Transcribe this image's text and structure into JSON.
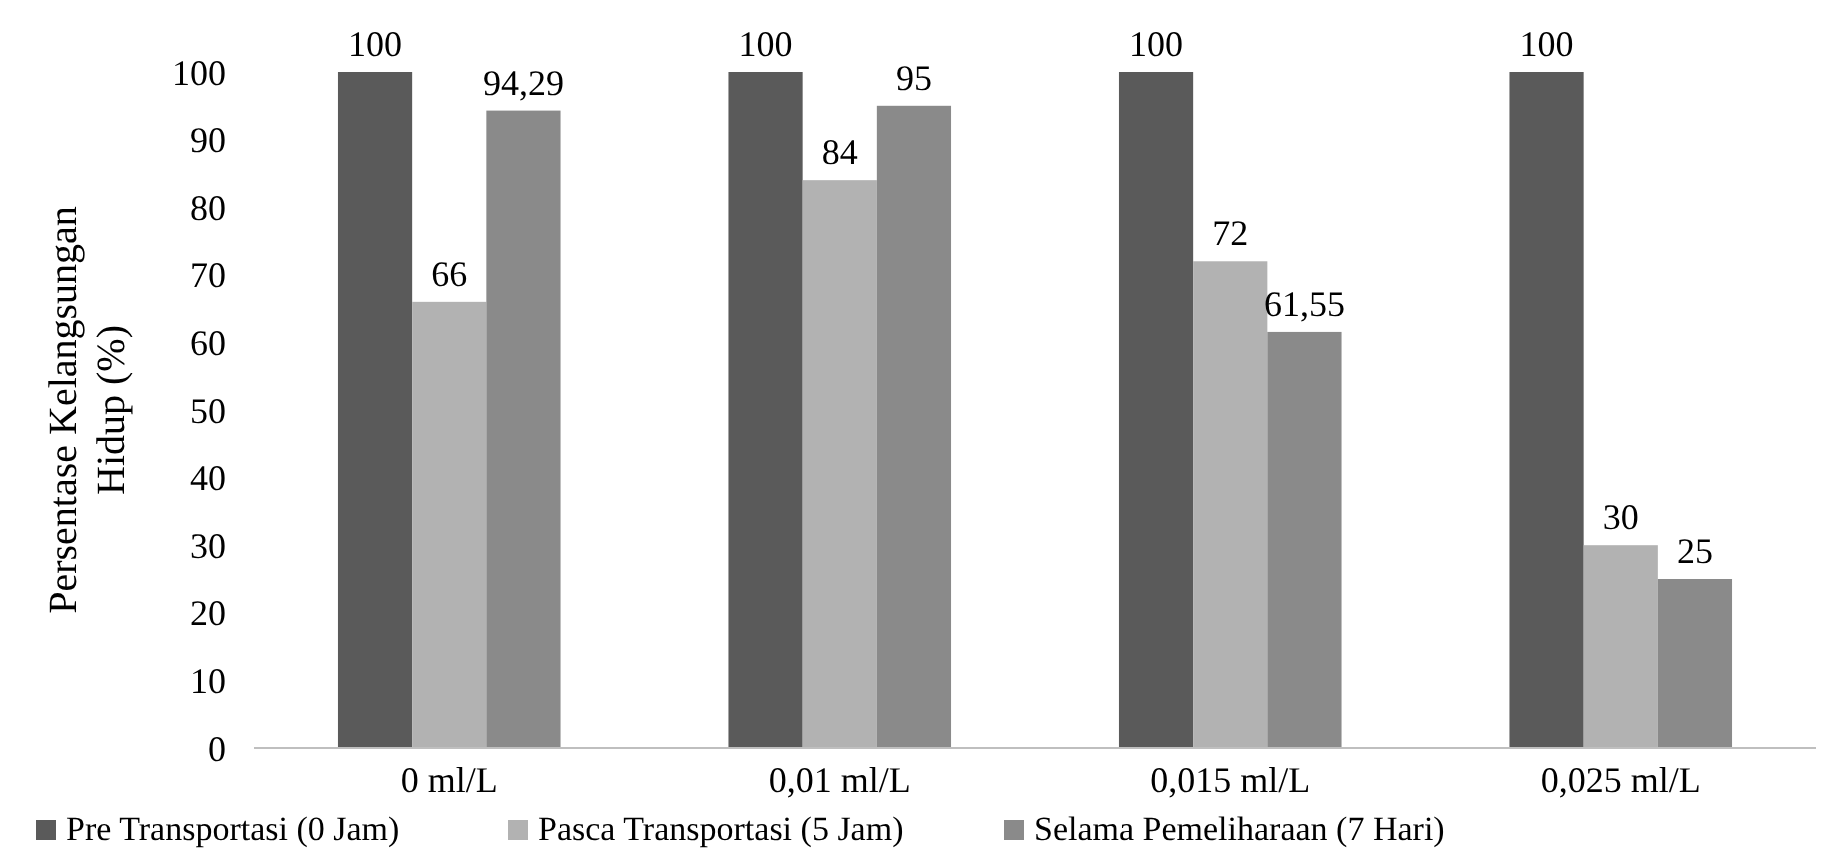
{
  "chart_data": {
    "type": "bar",
    "ylabel": "Persentase Kelangsungan Hidup (%)",
    "categories": [
      "0 ml/L",
      "0,01 ml/L",
      "0,015 ml/L",
      "0,025 ml/L"
    ],
    "series": [
      {
        "name": "Pre Transportasi (0 Jam)",
        "color": "#5a5a5a",
        "values": [
          100,
          100,
          100,
          100
        ],
        "value_labels": [
          "100",
          "100",
          "100",
          "100"
        ]
      },
      {
        "name": "Pasca Transportasi (5 Jam)",
        "color": "#b2b2b2",
        "values": [
          66,
          84,
          72,
          30
        ],
        "value_labels": [
          "66",
          "84",
          "72",
          "30"
        ]
      },
      {
        "name": "Selama Pemeliharaan (7 Hari)",
        "color": "#8a8a8a",
        "values": [
          94.29,
          95,
          61.55,
          25
        ],
        "value_labels": [
          "94,29",
          "95",
          "61,55",
          "25"
        ]
      }
    ],
    "ylim": [
      0,
      100
    ],
    "yticks": [
      0,
      10,
      20,
      30,
      40,
      50,
      60,
      70,
      80,
      90,
      100
    ],
    "grid": false,
    "legend": "bottom"
  }
}
